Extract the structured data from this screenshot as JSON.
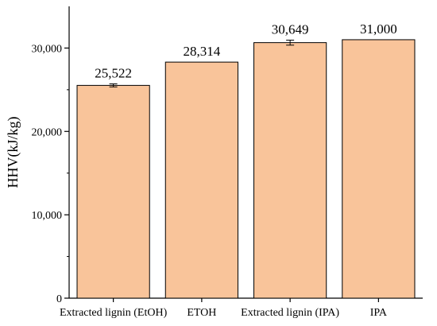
{
  "chart_data": {
    "type": "bar",
    "categories": [
      "Extracted lignin (EtOH)",
      "ETOH",
      "Extracted lignin (IPA)",
      "IPA"
    ],
    "values": [
      25522,
      28314,
      30649,
      31000
    ],
    "data_labels": [
      "25,522",
      "28,314",
      "30,649",
      "31,000"
    ],
    "error": [
      180,
      0,
      300,
      0
    ],
    "ylabel": "HHV(kJ/kg)",
    "ylim": [
      0,
      35000
    ],
    "yticks": [
      0,
      10000,
      20000,
      30000
    ],
    "ytick_labels": [
      "0",
      "10,000",
      "20,000",
      "30,000"
    ],
    "bar_color": "#F9C49A",
    "edge_color": "#000000",
    "grid": false
  }
}
